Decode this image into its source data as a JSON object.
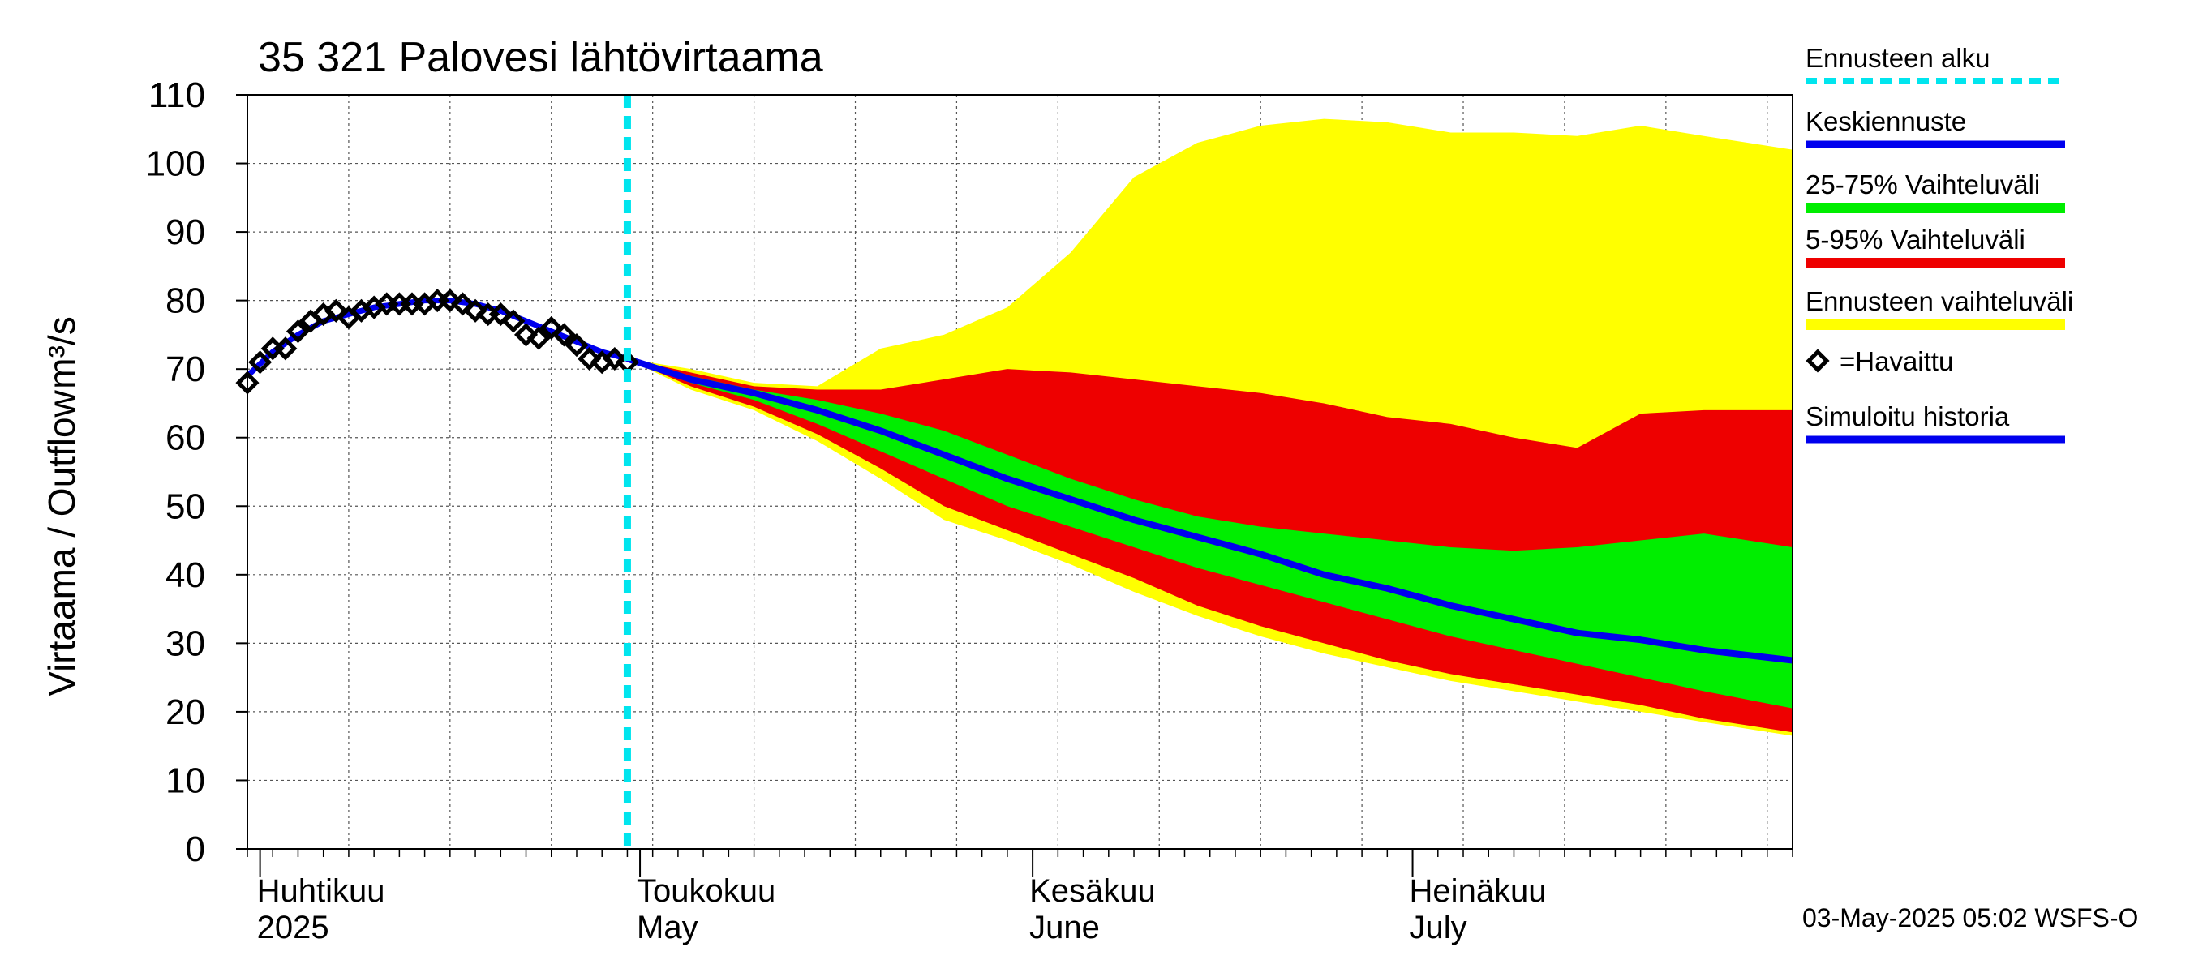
{
  "chart_data": {
    "type": "area",
    "title": "35 321 Palovesi lähtövirtaama",
    "ylabel_left": "Virtaama / Outflow",
    "ylabel_unit": "m³/s",
    "ylim": [
      0,
      110
    ],
    "yticks": [
      0,
      10,
      20,
      30,
      40,
      50,
      60,
      70,
      80,
      90,
      100,
      110
    ],
    "x_range": [
      "2025-03-31",
      "2025-07-31"
    ],
    "forecast_start": "2025-04-30",
    "grid": true,
    "legend_position": "right",
    "months": [
      {
        "date": "2025-04-01",
        "fi": "Huhtikuu",
        "en": "2025"
      },
      {
        "date": "2025-05-01",
        "fi": "Toukokuu",
        "en": "May"
      },
      {
        "date": "2025-06-01",
        "fi": "Kesäkuu",
        "en": "June"
      },
      {
        "date": "2025-07-01",
        "fi": "Heinäkuu",
        "en": "July"
      }
    ],
    "legend": [
      {
        "label": "Ennusteen alku",
        "color": "#00e5ee",
        "style": "dashed"
      },
      {
        "label": "Keskiennuste",
        "color": "#0000ee",
        "style": "line"
      },
      {
        "label": "25-75% Vaihteluväli",
        "color": "#00ee00",
        "style": "band"
      },
      {
        "label": "5-95% Vaihteluväli",
        "color": "#ee0000",
        "style": "band"
      },
      {
        "label": "Ennusteen vaihteluväli",
        "color": "#ffff00",
        "style": "band"
      },
      {
        "label": "=Havaittu",
        "color": "#000000",
        "style": "marker"
      },
      {
        "label": "Simuloitu historia",
        "color": "#0000ee",
        "style": "line"
      }
    ],
    "observed": {
      "x": [
        "2025-03-31",
        "2025-04-01",
        "2025-04-02",
        "2025-04-03",
        "2025-04-04",
        "2025-04-05",
        "2025-04-06",
        "2025-04-07",
        "2025-04-08",
        "2025-04-09",
        "2025-04-10",
        "2025-04-11",
        "2025-04-12",
        "2025-04-13",
        "2025-04-14",
        "2025-04-15",
        "2025-04-16",
        "2025-04-17",
        "2025-04-18",
        "2025-04-19",
        "2025-04-20",
        "2025-04-21",
        "2025-04-22",
        "2025-04-23",
        "2025-04-24",
        "2025-04-25",
        "2025-04-26",
        "2025-04-27",
        "2025-04-28",
        "2025-04-29",
        "2025-04-30"
      ],
      "y": [
        68,
        71,
        73,
        73,
        75.5,
        77,
        78,
        78.5,
        77.5,
        78.5,
        79,
        79.5,
        79.5,
        79.5,
        79.5,
        80,
        80,
        79.5,
        78.5,
        78,
        78,
        77,
        75,
        74.5,
        76,
        75,
        73.5,
        71.5,
        71,
        71.5,
        71
      ]
    },
    "simulated_history": {
      "x": [
        "2025-03-31",
        "2025-04-02",
        "2025-04-04",
        "2025-04-06",
        "2025-04-08",
        "2025-04-10",
        "2025-04-12",
        "2025-04-14",
        "2025-04-16",
        "2025-04-18",
        "2025-04-20",
        "2025-04-22",
        "2025-04-24",
        "2025-04-26",
        "2025-04-28",
        "2025-04-30"
      ],
      "y": [
        69,
        72.5,
        75,
        77,
        78,
        79,
        79.5,
        80,
        80,
        79.5,
        78.5,
        77,
        75.5,
        74,
        72.5,
        71.5
      ]
    },
    "forecast": {
      "x": [
        "2025-04-30",
        "2025-05-05",
        "2025-05-10",
        "2025-05-15",
        "2025-05-20",
        "2025-05-25",
        "2025-05-30",
        "2025-06-04",
        "2025-06-09",
        "2025-06-14",
        "2025-06-19",
        "2025-06-24",
        "2025-06-29",
        "2025-07-04",
        "2025-07-09",
        "2025-07-14",
        "2025-07-19",
        "2025-07-24",
        "2025-07-31"
      ],
      "median": [
        71.5,
        68.5,
        66.5,
        64,
        61,
        57.5,
        54,
        51,
        48,
        45.5,
        43,
        40,
        38,
        35.5,
        33.5,
        31.5,
        30.5,
        29,
        27.5
      ],
      "p25": [
        71.5,
        68,
        65.5,
        62,
        58,
        54,
        50,
        47,
        44,
        41,
        38.5,
        36,
        33.5,
        31,
        29,
        27,
        25,
        23,
        20.5
      ],
      "p75": [
        71.5,
        69,
        67,
        65.5,
        63.5,
        61,
        57.5,
        54,
        51,
        48.5,
        47,
        46,
        45,
        44,
        43.5,
        44,
        45,
        46,
        44
      ],
      "p05": [
        71.5,
        67.5,
        64.5,
        60.5,
        55.5,
        50,
        46.5,
        43,
        39.5,
        35.5,
        32.5,
        30,
        27.5,
        25.5,
        24,
        22.5,
        21,
        19,
        17
      ],
      "p95": [
        71.5,
        69.5,
        67.5,
        67,
        67,
        68.5,
        70,
        69.5,
        68.5,
        67.5,
        66.5,
        65,
        63,
        62,
        60,
        58.5,
        63.5,
        64,
        64
      ],
      "min": [
        71.5,
        67,
        64,
        59.5,
        54,
        48,
        45,
        41.5,
        37.5,
        34,
        31,
        28.5,
        26.5,
        24.5,
        23,
        21.5,
        20,
        18.5,
        16.5
      ],
      "max": [
        71.5,
        70,
        68,
        67.5,
        73,
        75,
        79,
        87,
        98,
        103,
        105.5,
        106.5,
        106,
        104.5,
        104.5,
        104,
        105.5,
        104,
        102
      ]
    },
    "footer": "03-May-2025 05:02 WSFS-O"
  }
}
